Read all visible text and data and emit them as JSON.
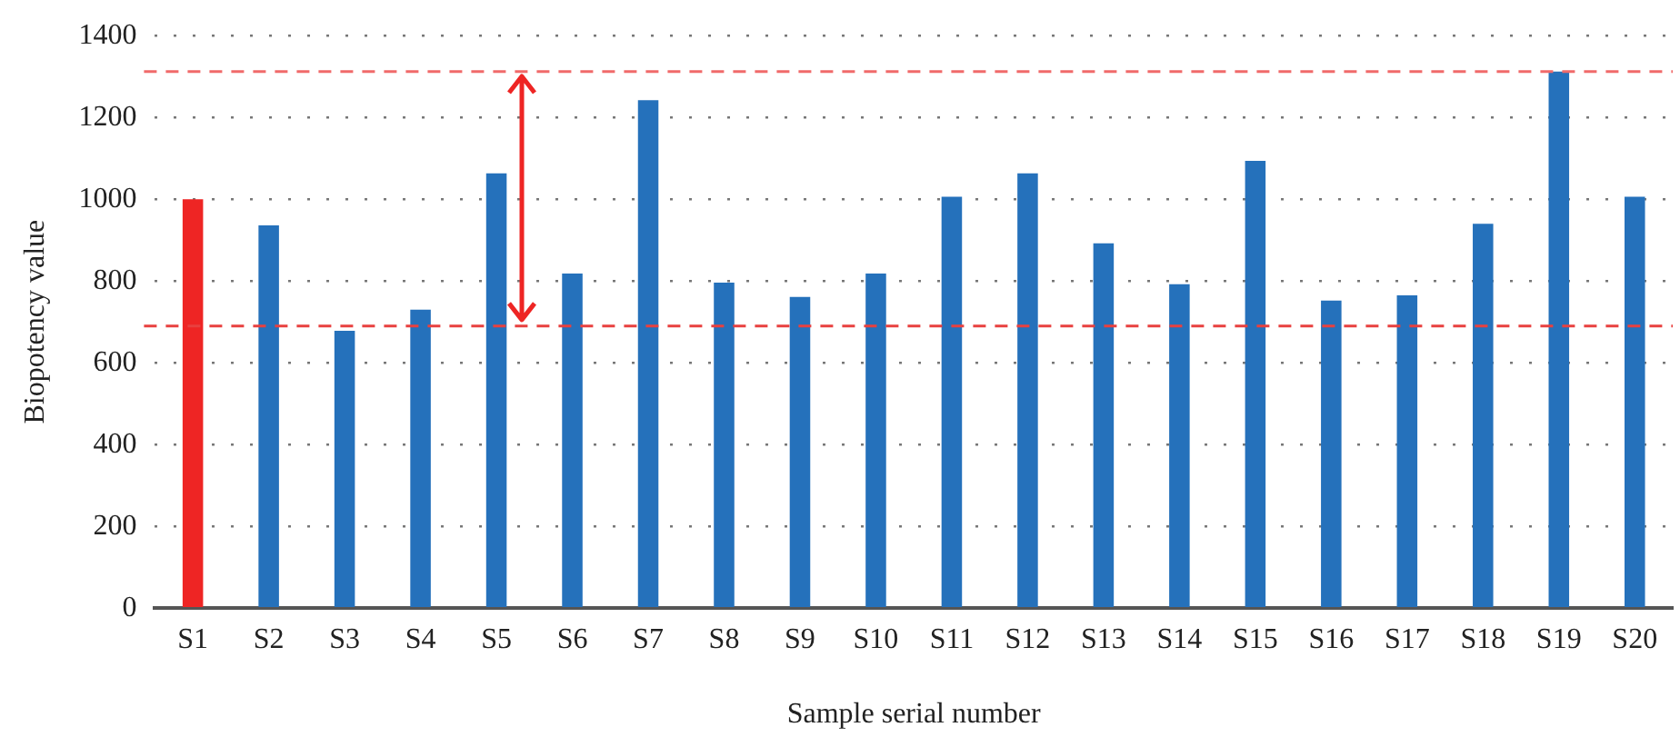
{
  "chart_data": {
    "type": "bar",
    "xlabel": "Sample serial number",
    "ylabel": "Biopotency value",
    "categories": [
      "S1",
      "S2",
      "S3",
      "S4",
      "S5",
      "S6",
      "S7",
      "S8",
      "S9",
      "S10",
      "S11",
      "S12",
      "S13",
      "S14",
      "S15",
      "S16",
      "S17",
      "S18",
      "S19",
      "S20"
    ],
    "values": [
      1000,
      936,
      678,
      730,
      1063,
      818,
      1242,
      796,
      761,
      818,
      1006,
      1063,
      892,
      792,
      1094,
      752,
      765,
      940,
      1312,
      1006
    ],
    "colors": [
      "#ee2524",
      "#2571bb",
      "#2571bb",
      "#2571bb",
      "#2571bb",
      "#2571bb",
      "#2571bb",
      "#2571bb",
      "#2571bb",
      "#2571bb",
      "#2571bb",
      "#2571bb",
      "#2571bb",
      "#2571bb",
      "#2571bb",
      "#2571bb",
      "#2571bb",
      "#2571bb",
      "#2571bb",
      "#2571bb"
    ],
    "ylim": [
      0,
      1400
    ],
    "yticks": [
      0,
      200,
      400,
      600,
      800,
      1000,
      1200,
      1400
    ],
    "grid": "y",
    "legend": false,
    "ref_lines": [
      {
        "axis": "y",
        "value": 1312,
        "color": "#f06a6a",
        "line_style": "dashed"
      },
      {
        "axis": "y",
        "value": 690,
        "color": "#e8403f",
        "line_style": "dashed"
      }
    ]
  }
}
